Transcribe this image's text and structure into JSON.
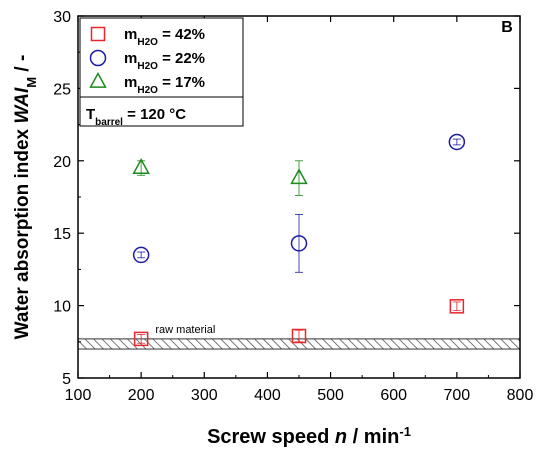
{
  "chart_data": {
    "type": "scatter",
    "panel_label": "B",
    "xlabel": {
      "main": "Screw speed ",
      "italic": "n",
      "unit": " / min",
      "sup": "-1"
    },
    "ylabel": {
      "main": "Water absorption index ",
      "italic": "WAI",
      "sub": "M",
      "unit": " / -"
    },
    "xlim": [
      100,
      800
    ],
    "ylim": [
      5,
      30
    ],
    "xticks": [
      100,
      200,
      300,
      400,
      500,
      600,
      700,
      800
    ],
    "yticks": [
      5,
      10,
      15,
      20,
      25,
      30
    ],
    "colors": {
      "red": "#e8262b",
      "blue": "#1c1ca8",
      "green": "#1d8a1d"
    },
    "series": [
      {
        "name": "m_H2O = 42%",
        "label_main": "m",
        "label_sub": "H2O",
        "label_rest": " = 42%",
        "marker": "square",
        "color": "#e8262b",
        "points": [
          {
            "x": 200,
            "y": 7.7,
            "err": 0.3
          },
          {
            "x": 450,
            "y": 7.9,
            "err": 0.4
          },
          {
            "x": 700,
            "y": 9.95,
            "err": 0.3
          }
        ]
      },
      {
        "name": "m_H2O = 22%",
        "label_main": "m",
        "label_sub": "H2O",
        "label_rest": " = 22%",
        "marker": "circle",
        "color": "#1c1ca8",
        "points": [
          {
            "x": 200,
            "y": 13.5,
            "err": 0.2
          },
          {
            "x": 450,
            "y": 14.3,
            "err": 2.0
          },
          {
            "x": 700,
            "y": 21.3,
            "err": 0.2
          }
        ]
      },
      {
        "name": "m_H2O = 17%",
        "label_main": "m",
        "label_sub": "H2O",
        "label_rest": " = 17%",
        "marker": "triangle",
        "color": "#1d8a1d",
        "points": [
          {
            "x": 200,
            "y": 19.5,
            "err": 0.5
          },
          {
            "x": 450,
            "y": 18.8,
            "err": 1.2
          }
        ]
      }
    ],
    "condition": {
      "main": "T",
      "sub": "barrel",
      "rest": " = 120 °C"
    },
    "reference_band": {
      "label": "raw material",
      "y_low": 7.0,
      "y_high": 7.7
    }
  }
}
